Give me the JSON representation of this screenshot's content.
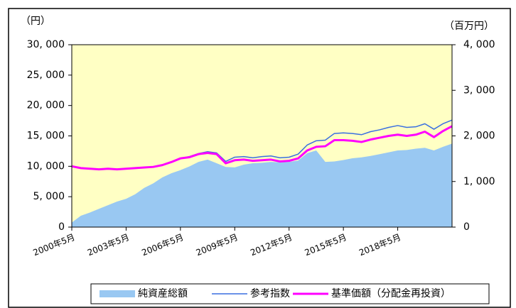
{
  "chart_data": {
    "type": "line",
    "y_unit_label": "（円）",
    "y2_unit_label": "（百万円）",
    "x": [
      "2000-05",
      "2000-11",
      "2001-05",
      "2001-11",
      "2002-05",
      "2002-11",
      "2003-05",
      "2003-11",
      "2004-05",
      "2004-11",
      "2005-05",
      "2005-11",
      "2006-05",
      "2006-11",
      "2007-05",
      "2007-11",
      "2008-05",
      "2008-11",
      "2009-05",
      "2009-11",
      "2010-05",
      "2010-11",
      "2011-05",
      "2011-11",
      "2012-05",
      "2012-11",
      "2013-05",
      "2013-11",
      "2014-05",
      "2014-11",
      "2015-05",
      "2015-11",
      "2016-05",
      "2016-11",
      "2017-05",
      "2017-11",
      "2018-05",
      "2018-11",
      "2019-05",
      "2019-11",
      "2020-05",
      "2020-11",
      "2021-05"
    ],
    "xlim": [
      "2000-05",
      "2021-05"
    ],
    "xticks": [
      {
        "value": "2000-05",
        "label": "2000年5月"
      },
      {
        "value": "2003-05",
        "label": "2003年5月"
      },
      {
        "value": "2006-05",
        "label": "2006年5月"
      },
      {
        "value": "2009-05",
        "label": "2009年5月"
      },
      {
        "value": "2012-05",
        "label": "2012年5月"
      },
      {
        "value": "2015-05",
        "label": "2015年5月"
      },
      {
        "value": "2018-05",
        "label": "2018年5月"
      }
    ],
    "ylim": [
      0,
      30000
    ],
    "yticks": [
      0,
      {
        "value": 5000,
        "label": "5, 000"
      },
      {
        "value": 10000,
        "label": "10, 000"
      },
      {
        "value": 15000,
        "label": "15, 000"
      },
      {
        "value": 20000,
        "label": "20, 000"
      },
      {
        "value": 25000,
        "label": "25, 000"
      },
      {
        "value": 30000,
        "label": "30, 000"
      }
    ],
    "y2lim": [
      0,
      4000
    ],
    "y2ticks": [
      0,
      {
        "value": 1000,
        "label": "1, 000"
      },
      {
        "value": 2000,
        "label": "2, 000"
      },
      {
        "value": 3000,
        "label": "3, 000"
      },
      {
        "value": 4000,
        "label": "4, 000"
      }
    ],
    "plot_background": "#ffffc4",
    "series": [
      {
        "name": "純資産総額",
        "color": "#99c8f2",
        "kind": "area",
        "axis": "y2",
        "values": [
          100,
          250,
          320,
          400,
          480,
          560,
          620,
          720,
          860,
          960,
          1090,
          1180,
          1250,
          1330,
          1430,
          1480,
          1400,
          1320,
          1310,
          1370,
          1400,
          1410,
          1430,
          1420,
          1430,
          1460,
          1620,
          1680,
          1430,
          1440,
          1470,
          1510,
          1530,
          1560,
          1600,
          1640,
          1680,
          1690,
          1720,
          1740,
          1680,
          1760,
          1830
        ]
      },
      {
        "name": "参考指数",
        "color": "#3a6fe0",
        "kind": "line",
        "width": 1.5,
        "values": [
          10000,
          9700,
          9600,
          9500,
          9600,
          9500,
          9600,
          9700,
          9800,
          9900,
          10200,
          10700,
          11300,
          11600,
          12100,
          12400,
          12200,
          10800,
          11500,
          11600,
          11400,
          11600,
          11700,
          11400,
          11500,
          12000,
          13500,
          14200,
          14300,
          15400,
          15500,
          15400,
          15200,
          15700,
          16000,
          16400,
          16700,
          16400,
          16500,
          17000,
          16100,
          17000,
          17600
        ]
      },
      {
        "name": "基準価額（分配金再投資）",
        "color": "#ff00ff",
        "kind": "line",
        "width": 3,
        "values": [
          10000,
          9700,
          9600,
          9500,
          9600,
          9500,
          9600,
          9700,
          9800,
          9900,
          10200,
          10700,
          11300,
          11500,
          12000,
          12200,
          12000,
          10500,
          11000,
          11100,
          10900,
          11000,
          11100,
          10800,
          10900,
          11300,
          12600,
          13200,
          13300,
          14300,
          14300,
          14200,
          14000,
          14400,
          14700,
          15000,
          15200,
          15000,
          15200,
          15700,
          14800,
          15800,
          16600
        ]
      }
    ]
  }
}
